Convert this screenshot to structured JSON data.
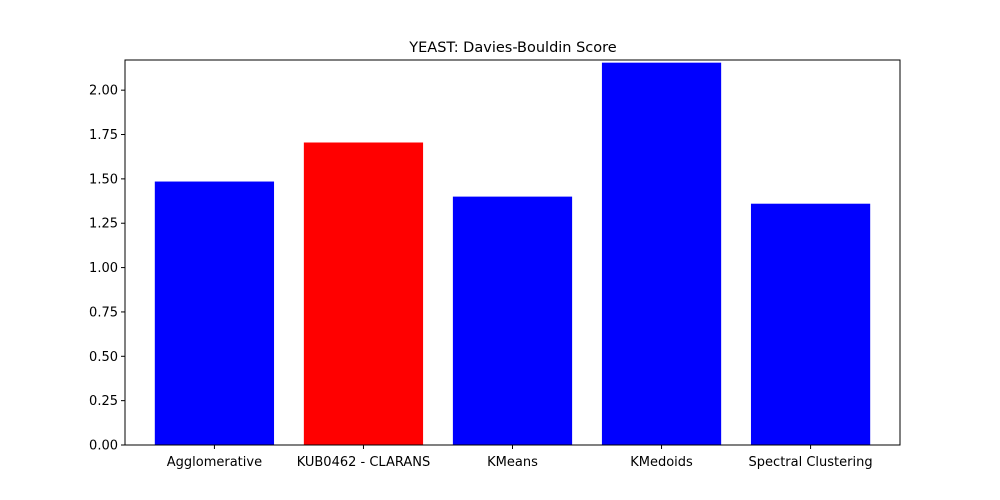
{
  "chart_data": {
    "type": "bar",
    "title": "YEAST: Davies-Bouldin Score",
    "xlabel": "",
    "ylabel": "",
    "categories": [
      "Agglomerative",
      "KUB0462 - CLARANS",
      "KMeans",
      "KMedoids",
      "Spectral Clustering"
    ],
    "values": [
      1.485,
      1.705,
      1.4,
      2.155,
      1.36
    ],
    "colors": [
      "#0000ff",
      "#ff0000",
      "#0000ff",
      "#0000ff",
      "#0000ff"
    ],
    "ylim": [
      0,
      2.17
    ],
    "yticks": [
      0.0,
      0.25,
      0.5,
      0.75,
      1.0,
      1.25,
      1.5,
      1.75,
      2.0
    ],
    "ytick_labels": [
      "0.00",
      "0.25",
      "0.50",
      "0.75",
      "1.00",
      "1.25",
      "1.50",
      "1.75",
      "2.00"
    ],
    "grid": false,
    "legend": "none"
  }
}
